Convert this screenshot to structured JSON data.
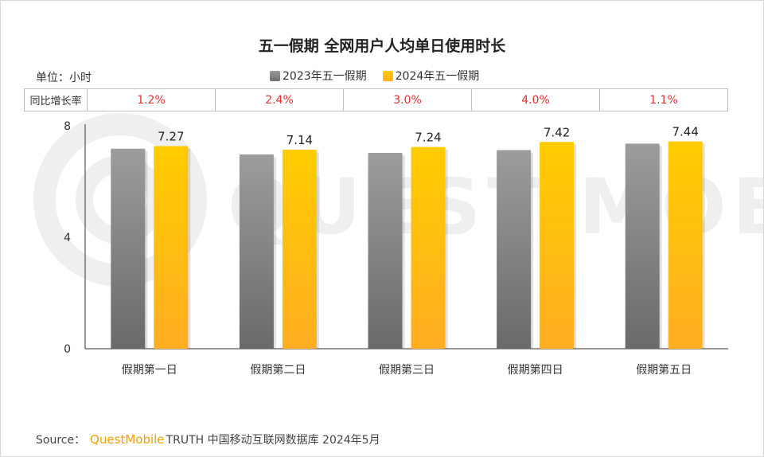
{
  "chart_data": {
    "type": "bar",
    "title": "五一假期 全网用户人均单日使用时长",
    "unit_label": "单位：小时",
    "categories": [
      "假期第一日",
      "假期第二日",
      "假期第三日",
      "假期第四日",
      "假期第五日"
    ],
    "series": [
      {
        "name": "2023年五一假期",
        "values": [
          7.18,
          6.97,
          7.03,
          7.13,
          7.36
        ],
        "color": "#808080"
      },
      {
        "name": "2024年五一假期",
        "values": [
          7.27,
          7.14,
          7.24,
          7.42,
          7.44
        ],
        "color": "#ffbf10"
      }
    ],
    "data_labels": [
      "7.27",
      "7.14",
      "7.24",
      "7.42",
      "7.44"
    ],
    "yticks": [
      0,
      4,
      8
    ],
    "ylim": [
      0,
      8
    ],
    "growth": {
      "header": "同比增长率",
      "values": [
        "1.2%",
        "2.4%",
        "3.0%",
        "4.0%",
        "1.1%"
      ]
    }
  },
  "watermark": "QUEST MOBILE",
  "source": {
    "prefix": "Source：",
    "brand": "QuestMobile",
    "suffix": "TRUTH 中国移动互联网数据库 2024年5月"
  }
}
